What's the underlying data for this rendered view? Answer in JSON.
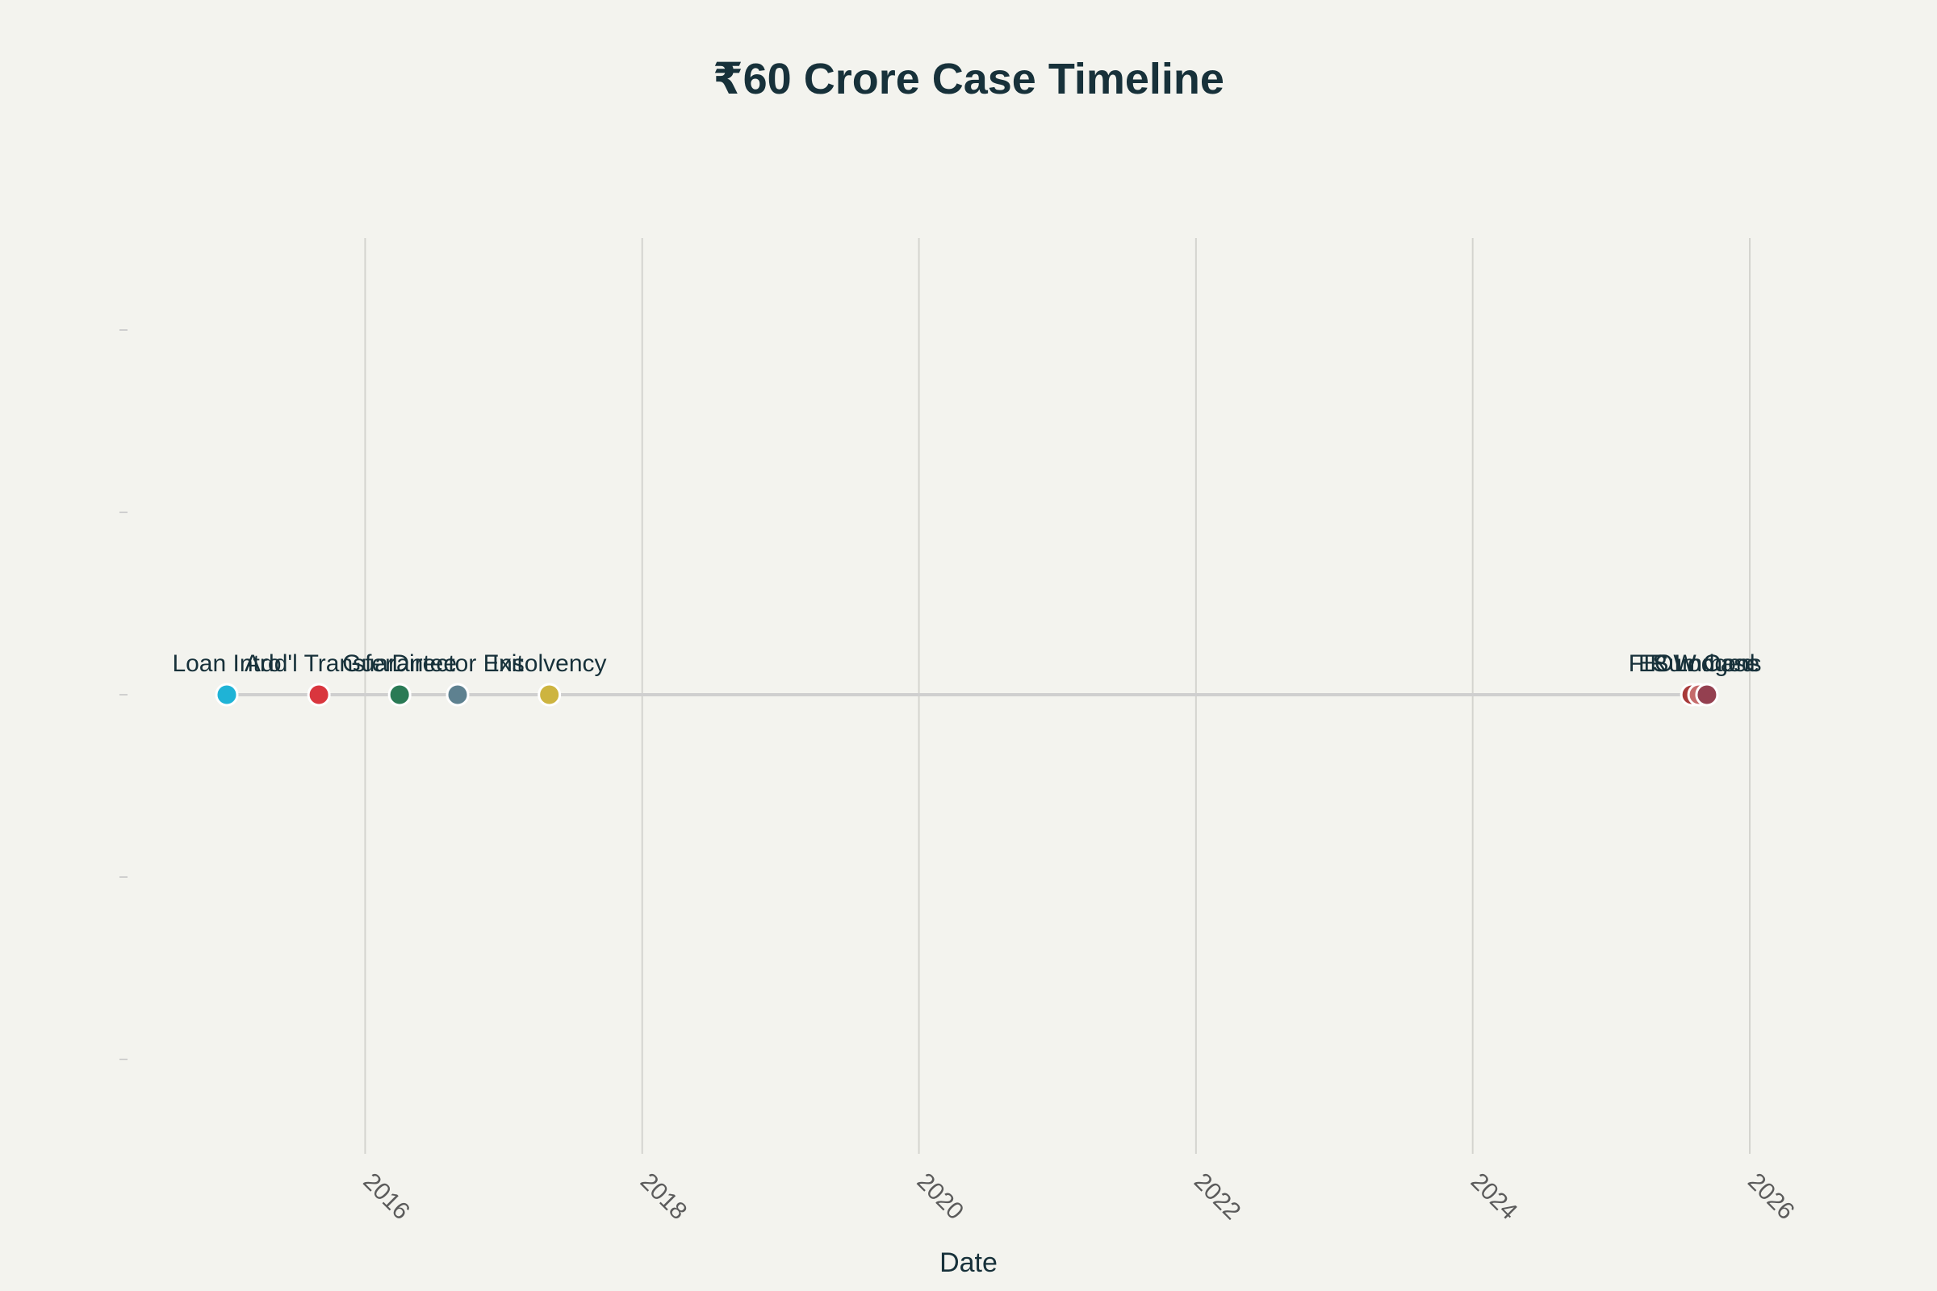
{
  "chart_data": {
    "type": "scatter",
    "title": "₹60 Crore Case Timeline",
    "xlabel": "Date",
    "ylabel": "",
    "x_axis_type": "date",
    "xlim": [
      "2015-01-01",
      "2026-07-01"
    ],
    "x_ticks": [
      "2016",
      "2018",
      "2020",
      "2022",
      "2024",
      "2026"
    ],
    "tick_label_rotation": "rotated 45 degrees clockwise",
    "grid": "vertical gridlines at x ticks",
    "legend": "none",
    "baseline_color": "#cfcfcf",
    "background_color": "#f3f3ee",
    "events": [
      {
        "date": "2015-01-01",
        "label": "Loan Intro",
        "color": "#1fb3d6"
      },
      {
        "date": "2015-09-01",
        "label": "Add'l Transfer",
        "color": "#d9363e"
      },
      {
        "date": "2016-04-01",
        "label": "Guarantee",
        "color": "#2a7a55"
      },
      {
        "date": "2016-09-01",
        "label": "Director Exit",
        "color": "#5e8190"
      },
      {
        "date": "2017-05-01",
        "label": "Insolvency",
        "color": "#cdb440"
      },
      {
        "date": "2025-08-01",
        "label": "FIR Lodged",
        "color": "#a83a3a"
      },
      {
        "date": "2025-08-20",
        "label": "EOW Case",
        "color": "#c56b6b"
      },
      {
        "date": "2025-09-10",
        "label": "Summons",
        "color": "#944050"
      }
    ]
  }
}
